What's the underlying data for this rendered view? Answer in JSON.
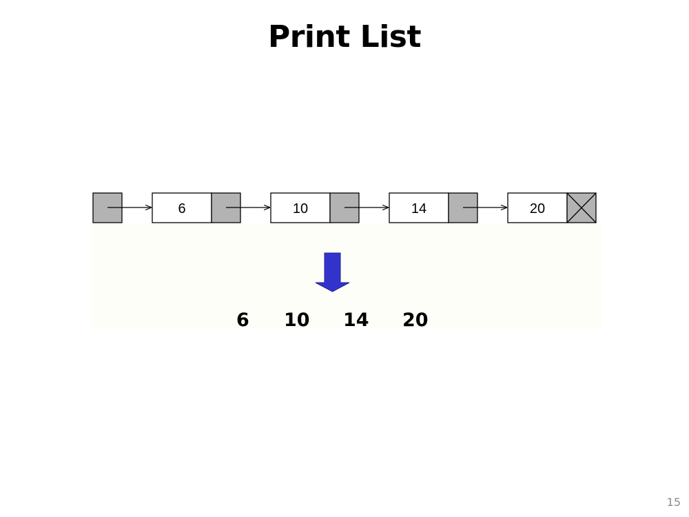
{
  "slide": {
    "title": "Print List",
    "page_number": "15"
  },
  "list": {
    "nodes": [
      "6",
      "10",
      "14",
      "20"
    ],
    "head_color": "#b3b3b3",
    "node_fill": "#ffffff",
    "pointer_fill": "#b3b3b3"
  },
  "output": {
    "values": [
      "6",
      "10",
      "14",
      "20"
    ]
  },
  "arrow_color": "#3333cc"
}
